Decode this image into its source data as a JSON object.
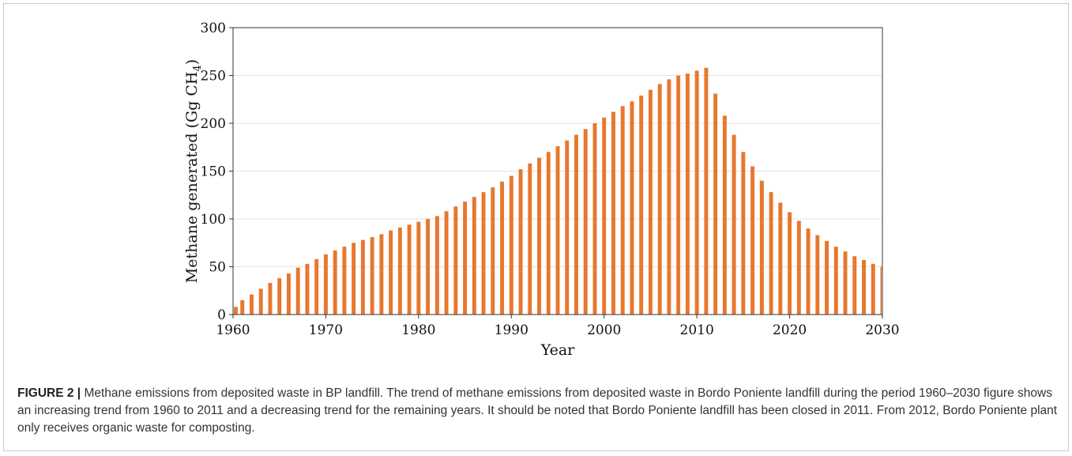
{
  "chart_data": {
    "type": "bar",
    "xlabel": "Year",
    "ylabel": "Methane generated (Gg CH",
    "ylabel_sub": "4",
    "ylabel_close": ")",
    "xlim": [
      1960,
      2030
    ],
    "ylim": [
      0,
      300
    ],
    "x_ticks": [
      "1960",
      "1970",
      "1980",
      "1990",
      "2000",
      "2010",
      "2020",
      "2030"
    ],
    "y_ticks": [
      "0",
      "50",
      "100",
      "150",
      "200",
      "250",
      "300"
    ],
    "grid": "horizontal",
    "bar_color": "#E8772E",
    "x": [
      1960,
      1961,
      1962,
      1963,
      1964,
      1965,
      1966,
      1967,
      1968,
      1969,
      1970,
      1971,
      1972,
      1973,
      1974,
      1975,
      1976,
      1977,
      1978,
      1979,
      1980,
      1981,
      1982,
      1983,
      1984,
      1985,
      1986,
      1987,
      1988,
      1989,
      1990,
      1991,
      1992,
      1993,
      1994,
      1995,
      1996,
      1997,
      1998,
      1999,
      2000,
      2001,
      2002,
      2003,
      2004,
      2005,
      2006,
      2007,
      2008,
      2009,
      2010,
      2011,
      2012,
      2013,
      2014,
      2015,
      2016,
      2017,
      2018,
      2019,
      2020,
      2021,
      2022,
      2023,
      2024,
      2025,
      2026,
      2027,
      2028,
      2029,
      2030
    ],
    "values": [
      8,
      15,
      21,
      27,
      33,
      38,
      43,
      49,
      53,
      58,
      63,
      67,
      71,
      75,
      78,
      81,
      84,
      88,
      91,
      94,
      97,
      100,
      103,
      108,
      113,
      118,
      123,
      128,
      133,
      139,
      145,
      152,
      158,
      164,
      170,
      176,
      182,
      188,
      194,
      200,
      206,
      212,
      218,
      223,
      229,
      235,
      241,
      246,
      250,
      252,
      255,
      258,
      231,
      208,
      188,
      170,
      155,
      140,
      128,
      117,
      107,
      98,
      90,
      83,
      77,
      71,
      66,
      61,
      57,
      53,
      50
    ]
  },
  "caption": {
    "label": "FIGURE 2 |",
    "text": " Methane emissions from deposited waste in BP landfill. The trend of methane emissions from deposited waste in Bordo Poniente landfill during the period 1960–2030 figure shows an increasing trend from 1960 to 2011 and a decreasing trend for the remaining years. It should be noted that Bordo Poniente landfill has been closed in 2011. From 2012, Bordo Poniente plant only receives organic waste for composting."
  }
}
